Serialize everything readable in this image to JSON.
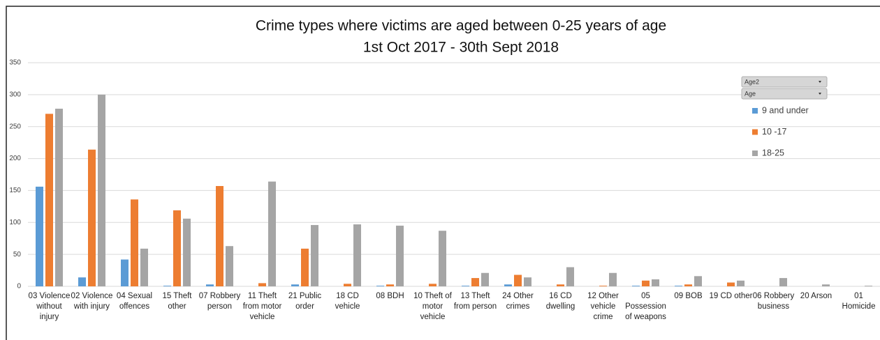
{
  "chart_data": {
    "type": "bar",
    "title": "Crime types where victims are aged between 0-25 years of age",
    "subtitle": "1st Oct 2017 - 30th Sept 2018",
    "categories": [
      "03 Violence without injury",
      "02 Violence with injury",
      "04 Sexual offences",
      "15 Theft other",
      "07 Robbery person",
      "11 Theft from motor vehicle",
      "21 Public order",
      "18 CD vehicle",
      "08 BDH",
      "10 Theft of motor vehicle",
      "13 Theft from person",
      "24 Other crimes",
      "16 CD dwelling",
      "12 Other vehicle crime",
      "05 Possession of weapons",
      "09 BOB",
      "19 CD other",
      "06 Robbery business",
      "20 Arson",
      "01 Homicide"
    ],
    "series": [
      {
        "name": "9 and under",
        "color": "#5b9bd5",
        "values": [
          156,
          14,
          42,
          1,
          3,
          0,
          3,
          0,
          1,
          0,
          1,
          3,
          0,
          0,
          1,
          1,
          0,
          0,
          0,
          0
        ]
      },
      {
        "name": "10 -17",
        "color": "#ed7d31",
        "values": [
          270,
          214,
          136,
          119,
          157,
          5,
          59,
          4,
          3,
          4,
          13,
          18,
          3,
          1,
          9,
          3,
          6,
          0,
          0,
          0
        ]
      },
      {
        "name": "18-25",
        "color": "#a5a5a5",
        "values": [
          278,
          300,
          59,
          106,
          63,
          164,
          96,
          97,
          95,
          87,
          21,
          14,
          30,
          21,
          11,
          16,
          9,
          13,
          3,
          1
        ]
      }
    ],
    "filter_buttons": [
      "Age2",
      "Age"
    ],
    "ylim": [
      0,
      350
    ],
    "yticks": [
      0,
      50,
      100,
      150,
      200,
      250,
      300,
      350
    ],
    "grid": true,
    "legend": "right"
  }
}
